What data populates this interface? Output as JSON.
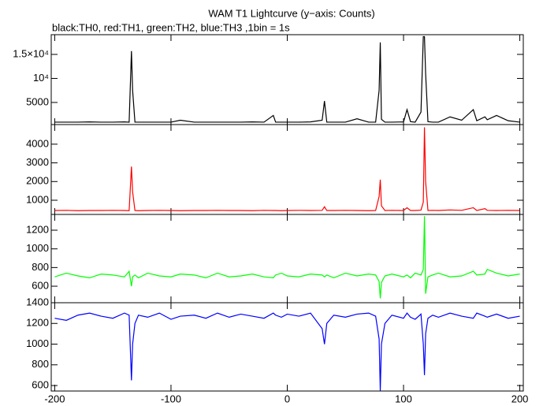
{
  "chart_data": [
    {
      "type": "line",
      "title": "WAM T1 Lightcurve (y−axis: Counts)",
      "subtitle": "black:TH0, red:TH1, green:TH2, blue:TH3 ,1bin = 1s",
      "x": [
        -200,
        -190,
        -180,
        -170,
        -160,
        -150,
        -140,
        -136,
        -134,
        -133,
        -131,
        -128,
        -120,
        -110,
        -100,
        -92,
        -80,
        -70,
        -60,
        -50,
        -40,
        -30,
        -20,
        -12,
        -10,
        -5,
        0,
        10,
        20,
        30,
        32,
        34,
        40,
        50,
        60,
        70,
        76,
        79,
        80,
        81,
        84,
        90,
        100,
        103,
        106,
        110,
        115,
        117,
        118,
        119,
        121,
        125,
        130,
        140,
        150,
        160,
        163,
        170,
        172,
        180,
        190,
        200
      ],
      "values": [
        900,
        900,
        900,
        950,
        900,
        900,
        950,
        900,
        15700,
        7500,
        900,
        900,
        900,
        900,
        900,
        1300,
        900,
        900,
        900,
        900,
        900,
        950,
        900,
        2300,
        900,
        900,
        900,
        900,
        950,
        1300,
        5300,
        900,
        900,
        900,
        1600,
        900,
        900,
        7500,
        17500,
        1500,
        900,
        900,
        950,
        3500,
        1000,
        900,
        3000,
        18700,
        18700,
        11000,
        1000,
        900,
        900,
        2000,
        1300,
        3500,
        1200,
        2000,
        1400,
        2300,
        1200,
        900
      ],
      "color": "#000000",
      "xlim": [
        -203,
        203
      ],
      "ylim": [
        400,
        19100
      ],
      "yticks": [
        {
          "value": 5000,
          "label": "5000"
        },
        {
          "value": 10000,
          "label": "10⁴"
        },
        {
          "value": 15000,
          "label": "1.5×10⁴"
        }
      ]
    },
    {
      "type": "line",
      "x": [
        -200,
        -190,
        -180,
        -170,
        -160,
        -150,
        -140,
        -136,
        -134,
        -133,
        -131,
        -128,
        -120,
        -110,
        -100,
        -92,
        -80,
        -70,
        -60,
        -50,
        -40,
        -30,
        -20,
        -12,
        -10,
        -5,
        0,
        10,
        20,
        30,
        32,
        34,
        40,
        50,
        60,
        70,
        76,
        79,
        80,
        81,
        84,
        90,
        100,
        103,
        106,
        110,
        115,
        117,
        118,
        119,
        121,
        125,
        130,
        140,
        150,
        160,
        163,
        170,
        172,
        180,
        190,
        200
      ],
      "values": [
        450,
        460,
        440,
        450,
        450,
        460,
        450,
        440,
        2800,
        1450,
        450,
        440,
        450,
        460,
        450,
        440,
        450,
        450,
        460,
        450,
        450,
        440,
        460,
        450,
        450,
        440,
        450,
        460,
        450,
        460,
        650,
        450,
        450,
        460,
        450,
        440,
        450,
        1200,
        2100,
        700,
        450,
        460,
        450,
        600,
        450,
        450,
        470,
        900,
        4900,
        2000,
        450,
        460,
        450,
        480,
        460,
        600,
        450,
        550,
        460,
        450,
        460,
        450
      ],
      "color": "#ff0000",
      "xlim": [
        -203,
        203
      ],
      "ylim": [
        240,
        5050
      ],
      "yticks": [
        1000,
        2000,
        3000,
        4000
      ]
    },
    {
      "type": "line",
      "x": [
        -200,
        -190,
        -180,
        -170,
        -160,
        -150,
        -140,
        -136,
        -134,
        -133,
        -131,
        -128,
        -120,
        -110,
        -100,
        -92,
        -80,
        -70,
        -60,
        -50,
        -40,
        -30,
        -20,
        -12,
        -10,
        -5,
        0,
        10,
        20,
        30,
        32,
        34,
        40,
        50,
        60,
        70,
        76,
        79,
        80,
        81,
        84,
        90,
        100,
        103,
        106,
        110,
        115,
        117,
        118,
        119,
        121,
        125,
        130,
        140,
        150,
        160,
        163,
        170,
        172,
        180,
        190,
        200
      ],
      "values": [
        700,
        740,
        710,
        690,
        730,
        720,
        700,
        760,
        600,
        700,
        720,
        690,
        740,
        710,
        700,
        730,
        720,
        690,
        740,
        700,
        710,
        730,
        700,
        690,
        720,
        740,
        710,
        700,
        730,
        720,
        700,
        720,
        690,
        740,
        710,
        730,
        720,
        650,
        470,
        640,
        710,
        730,
        700,
        720,
        690,
        740,
        720,
        780,
        1350,
        520,
        700,
        720,
        740,
        700,
        710,
        760,
        720,
        730,
        780,
        740,
        710,
        730
      ],
      "color": "#00ff00",
      "xlim": [
        -203,
        203
      ],
      "ylim": [
        423,
        1369
      ],
      "yticks": [
        600,
        800,
        1000,
        1200
      ]
    },
    {
      "type": "line",
      "x": [
        -200,
        -190,
        -180,
        -170,
        -160,
        -150,
        -140,
        -136,
        -134,
        -133,
        -131,
        -128,
        -120,
        -110,
        -100,
        -92,
        -80,
        -70,
        -60,
        -50,
        -40,
        -30,
        -20,
        -12,
        -10,
        -5,
        0,
        10,
        20,
        30,
        32,
        34,
        40,
        50,
        60,
        70,
        76,
        79,
        80,
        81,
        84,
        90,
        100,
        103,
        106,
        110,
        115,
        117,
        118,
        119,
        121,
        125,
        130,
        140,
        150,
        160,
        163,
        170,
        172,
        180,
        190,
        200
      ],
      "values": [
        1250,
        1230,
        1280,
        1300,
        1270,
        1250,
        1300,
        1280,
        650,
        1000,
        1200,
        1280,
        1260,
        1300,
        1240,
        1270,
        1280,
        1250,
        1300,
        1260,
        1290,
        1270,
        1250,
        1300,
        1280,
        1260,
        1290,
        1270,
        1300,
        1150,
        1000,
        1200,
        1280,
        1260,
        1290,
        1300,
        1270,
        1050,
        550,
        1000,
        1200,
        1280,
        1250,
        1300,
        1260,
        1240,
        1290,
        1000,
        700,
        1100,
        1250,
        1280,
        1260,
        1300,
        1270,
        1250,
        1300,
        1270,
        1260,
        1290,
        1250,
        1270
      ],
      "color": "#0000ff",
      "xlim": [
        -203,
        203
      ],
      "ylim": [
        547,
        1400
      ],
      "yticks": [
        600,
        800,
        1000,
        1200,
        1400
      ],
      "xticks": [
        -200,
        -100,
        0,
        100,
        200
      ]
    }
  ]
}
